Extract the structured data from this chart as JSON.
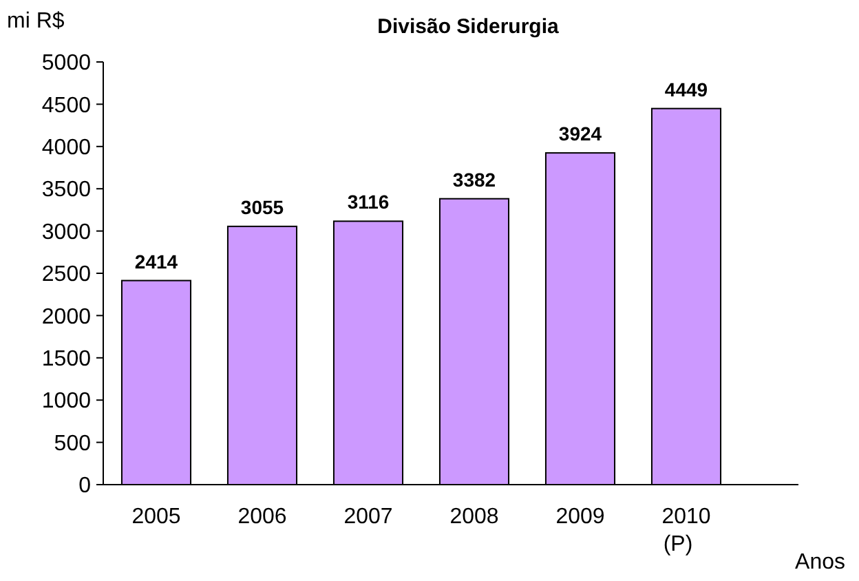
{
  "chart_data": {
    "type": "bar",
    "title": "Divisão Siderurgia",
    "ylabel": "mi R$",
    "xlabel": "Anos",
    "categories": [
      "2005",
      "2006",
      "2007",
      "2008",
      "2009",
      "2010\n(P)"
    ],
    "values": [
      2414,
      3055,
      3116,
      3382,
      3924,
      4449
    ],
    "color": "#cc99ff",
    "data_labels": true,
    "ylim": [
      0,
      5000
    ],
    "yticks": [
      0,
      500,
      1000,
      1500,
      2000,
      2500,
      3000,
      3500,
      4000,
      4500,
      5000
    ],
    "grid": false
  }
}
